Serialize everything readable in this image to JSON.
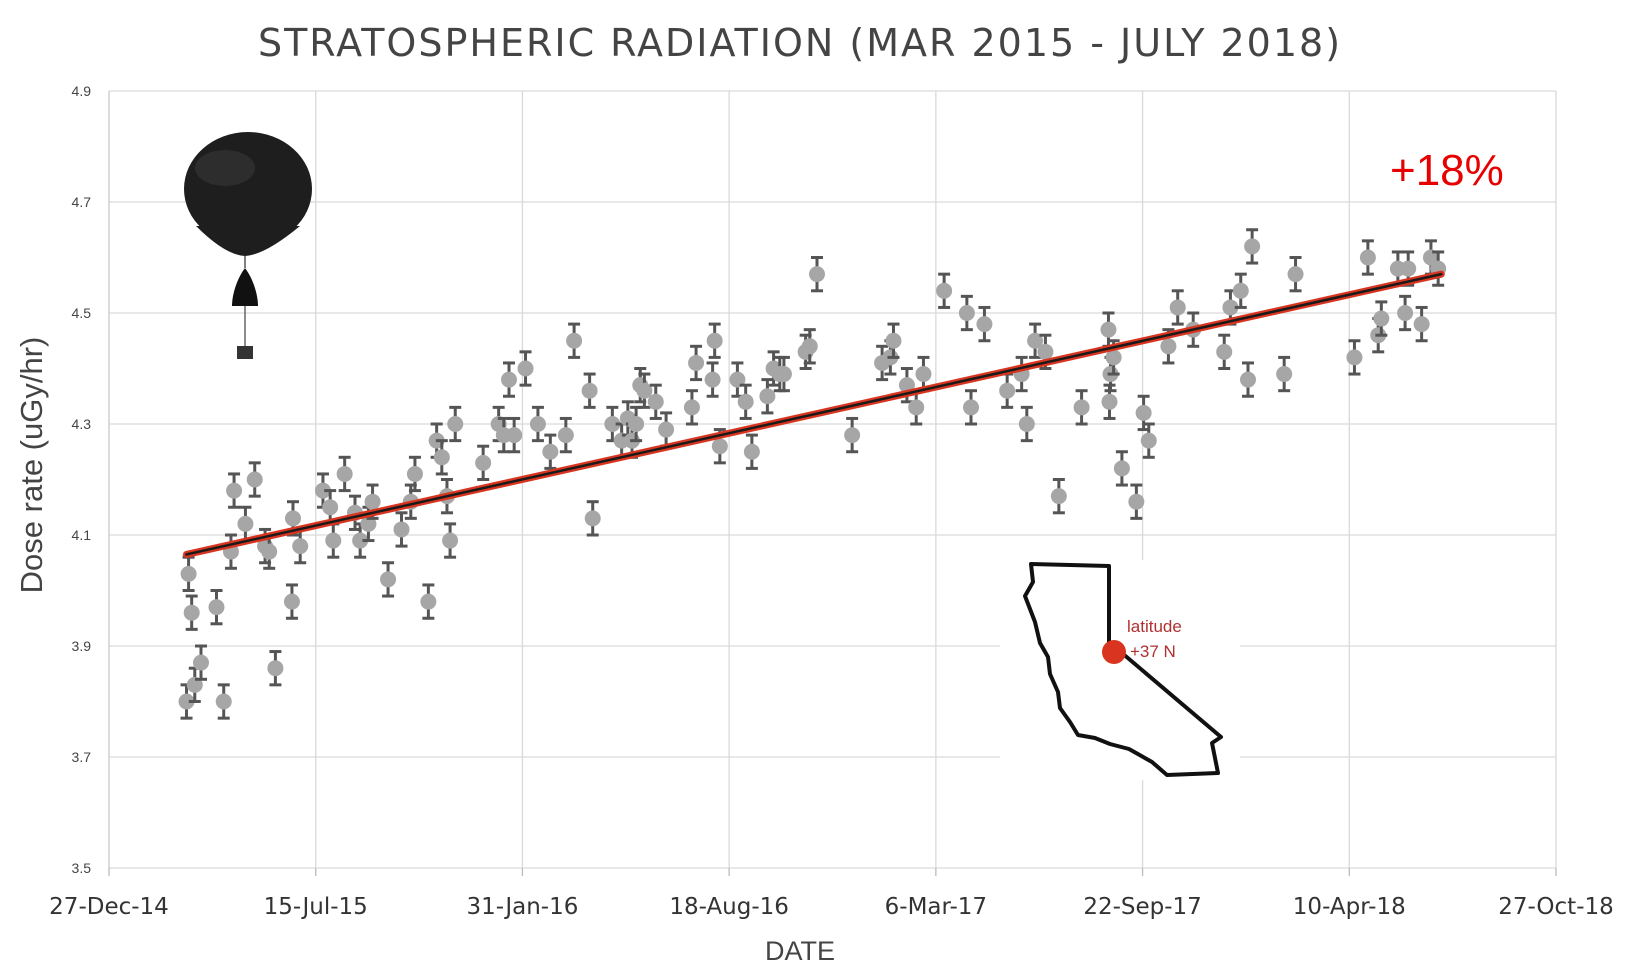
{
  "chart_data": {
    "type": "scatter",
    "title": "STRATOSPHERIC RADIATION (MAR 2015 - JULY 2018)",
    "xlabel": "DATE",
    "ylabel": "Dose rate (uGy/hr)",
    "ylim": [
      3.5,
      4.9
    ],
    "yticks": [
      "3.5",
      "3.7",
      "3.9",
      "4.1",
      "4.3",
      "4.5",
      "4.7",
      "4.9"
    ],
    "xlim": [
      "2014-12-27",
      "2018-10-27"
    ],
    "xticks": [
      {
        "date": "2014-12-27",
        "label": "27-Dec-14"
      },
      {
        "date": "2015-07-15",
        "label": "15-Jul-15"
      },
      {
        "date": "2016-01-31",
        "label": "31-Jan-16"
      },
      {
        "date": "2016-08-18",
        "label": "18-Aug-16"
      },
      {
        "date": "2017-03-06",
        "label": "6-Mar-17"
      },
      {
        "date": "2017-09-22",
        "label": "22-Sep-17"
      },
      {
        "date": "2018-04-10",
        "label": "10-Apr-18"
      },
      {
        "date": "2018-10-27",
        "label": "27-Oct-18"
      }
    ],
    "grid": true,
    "error_bar": 0.03,
    "points": [
      {
        "x": "2015-03-12",
        "y": 3.8
      },
      {
        "x": "2015-03-14",
        "y": 4.03
      },
      {
        "x": "2015-03-17",
        "y": 3.96
      },
      {
        "x": "2015-03-20",
        "y": 3.83
      },
      {
        "x": "2015-03-26",
        "y": 3.87
      },
      {
        "x": "2015-04-10",
        "y": 3.97
      },
      {
        "x": "2015-04-17",
        "y": 3.8
      },
      {
        "x": "2015-04-24",
        "y": 4.07
      },
      {
        "x": "2015-04-27",
        "y": 4.18
      },
      {
        "x": "2015-05-08",
        "y": 4.12
      },
      {
        "x": "2015-05-17",
        "y": 4.2
      },
      {
        "x": "2015-05-27",
        "y": 4.08
      },
      {
        "x": "2015-05-31",
        "y": 4.07
      },
      {
        "x": "2015-06-06",
        "y": 3.86
      },
      {
        "x": "2015-06-22",
        "y": 3.98
      },
      {
        "x": "2015-06-23",
        "y": 4.13
      },
      {
        "x": "2015-06-30",
        "y": 4.08
      },
      {
        "x": "2015-07-22",
        "y": 4.18
      },
      {
        "x": "2015-07-29",
        "y": 4.15
      },
      {
        "x": "2015-08-01",
        "y": 4.09
      },
      {
        "x": "2015-08-12",
        "y": 4.21
      },
      {
        "x": "2015-08-22",
        "y": 4.14
      },
      {
        "x": "2015-08-27",
        "y": 4.09
      },
      {
        "x": "2015-09-04",
        "y": 4.12
      },
      {
        "x": "2015-09-08",
        "y": 4.16
      },
      {
        "x": "2015-09-23",
        "y": 4.02
      },
      {
        "x": "2015-10-06",
        "y": 4.11
      },
      {
        "x": "2015-10-15",
        "y": 4.16
      },
      {
        "x": "2015-10-19",
        "y": 4.21
      },
      {
        "x": "2015-11-01",
        "y": 3.98
      },
      {
        "x": "2015-11-09",
        "y": 4.27
      },
      {
        "x": "2015-11-14",
        "y": 4.24
      },
      {
        "x": "2015-11-19",
        "y": 4.17
      },
      {
        "x": "2015-11-22",
        "y": 4.09
      },
      {
        "x": "2015-11-27",
        "y": 4.3
      },
      {
        "x": "2015-12-24",
        "y": 4.23
      },
      {
        "x": "2016-01-08",
        "y": 4.3
      },
      {
        "x": "2016-01-13",
        "y": 4.28
      },
      {
        "x": "2016-01-18",
        "y": 4.38
      },
      {
        "x": "2016-01-23",
        "y": 4.28
      },
      {
        "x": "2016-02-03",
        "y": 4.4
      },
      {
        "x": "2016-02-15",
        "y": 4.3
      },
      {
        "x": "2016-02-27",
        "y": 4.25
      },
      {
        "x": "2016-03-13",
        "y": 4.28
      },
      {
        "x": "2016-03-21",
        "y": 4.45
      },
      {
        "x": "2016-04-05",
        "y": 4.36
      },
      {
        "x": "2016-04-08",
        "y": 4.13
      },
      {
        "x": "2016-04-27",
        "y": 4.3
      },
      {
        "x": "2016-05-06",
        "y": 4.27
      },
      {
        "x": "2016-05-12",
        "y": 4.31
      },
      {
        "x": "2016-05-16",
        "y": 4.27
      },
      {
        "x": "2016-05-20",
        "y": 4.3
      },
      {
        "x": "2016-05-24",
        "y": 4.37
      },
      {
        "x": "2016-05-28",
        "y": 4.36
      },
      {
        "x": "2016-06-08",
        "y": 4.34
      },
      {
        "x": "2016-06-18",
        "y": 4.29
      },
      {
        "x": "2016-07-13",
        "y": 4.33
      },
      {
        "x": "2016-07-17",
        "y": 4.41
      },
      {
        "x": "2016-08-02",
        "y": 4.38
      },
      {
        "x": "2016-08-04",
        "y": 4.45
      },
      {
        "x": "2016-08-09",
        "y": 4.26
      },
      {
        "x": "2016-08-26",
        "y": 4.38
      },
      {
        "x": "2016-09-03",
        "y": 4.34
      },
      {
        "x": "2016-09-09",
        "y": 4.25
      },
      {
        "x": "2016-09-24",
        "y": 4.35
      },
      {
        "x": "2016-09-30",
        "y": 4.4
      },
      {
        "x": "2016-10-06",
        "y": 4.39
      },
      {
        "x": "2016-10-10",
        "y": 4.39
      },
      {
        "x": "2016-10-31",
        "y": 4.43
      },
      {
        "x": "2016-11-04",
        "y": 4.44
      },
      {
        "x": "2016-11-11",
        "y": 4.57
      },
      {
        "x": "2016-12-15",
        "y": 4.28
      },
      {
        "x": "2017-01-13",
        "y": 4.41
      },
      {
        "x": "2017-01-21",
        "y": 4.42
      },
      {
        "x": "2017-01-24",
        "y": 4.45
      },
      {
        "x": "2017-02-06",
        "y": 4.37
      },
      {
        "x": "2017-02-15",
        "y": 4.33
      },
      {
        "x": "2017-02-22",
        "y": 4.39
      },
      {
        "x": "2017-03-14",
        "y": 4.54
      },
      {
        "x": "2017-04-05",
        "y": 4.5
      },
      {
        "x": "2017-04-09",
        "y": 4.33
      },
      {
        "x": "2017-04-22",
        "y": 4.48
      },
      {
        "x": "2017-05-14",
        "y": 4.36
      },
      {
        "x": "2017-05-28",
        "y": 4.39
      },
      {
        "x": "2017-06-02",
        "y": 4.3
      },
      {
        "x": "2017-06-10",
        "y": 4.45
      },
      {
        "x": "2017-06-20",
        "y": 4.43
      },
      {
        "x": "2017-07-03",
        "y": 4.17
      },
      {
        "x": "2017-07-25",
        "y": 4.33
      },
      {
        "x": "2017-08-20",
        "y": 4.47
      },
      {
        "x": "2017-08-21",
        "y": 4.34
      },
      {
        "x": "2017-08-22",
        "y": 4.39
      },
      {
        "x": "2017-08-25",
        "y": 4.42
      },
      {
        "x": "2017-09-02",
        "y": 4.22
      },
      {
        "x": "2017-09-16",
        "y": 4.16
      },
      {
        "x": "2017-09-23",
        "y": 4.32
      },
      {
        "x": "2017-09-28",
        "y": 4.27
      },
      {
        "x": "2017-10-17",
        "y": 4.44
      },
      {
        "x": "2017-10-26",
        "y": 4.51
      },
      {
        "x": "2017-11-10",
        "y": 4.47
      },
      {
        "x": "2017-12-10",
        "y": 4.43
      },
      {
        "x": "2017-12-16",
        "y": 4.51
      },
      {
        "x": "2017-12-26",
        "y": 4.54
      },
      {
        "x": "2018-01-02",
        "y": 4.38
      },
      {
        "x": "2018-01-06",
        "y": 4.62
      },
      {
        "x": "2018-02-06",
        "y": 4.39
      },
      {
        "x": "2018-02-17",
        "y": 4.57
      },
      {
        "x": "2018-04-15",
        "y": 4.42
      },
      {
        "x": "2018-04-28",
        "y": 4.6
      },
      {
        "x": "2018-05-08",
        "y": 4.46
      },
      {
        "x": "2018-05-11",
        "y": 4.49
      },
      {
        "x": "2018-05-27",
        "y": 4.58
      },
      {
        "x": "2018-06-03",
        "y": 4.5
      },
      {
        "x": "2018-06-06",
        "y": 4.58
      },
      {
        "x": "2018-06-19",
        "y": 4.48
      },
      {
        "x": "2018-06-28",
        "y": 4.6
      },
      {
        "x": "2018-07-05",
        "y": 4.58
      }
    ],
    "trendline": {
      "start": {
        "x": "2015-03-12",
        "y": 4.065
      },
      "end": {
        "x": "2018-07-08",
        "y": 4.57
      }
    },
    "annotations": {
      "increase": "+18%",
      "map_label_line1": "latitude",
      "map_label_line2": "+37 N"
    }
  }
}
